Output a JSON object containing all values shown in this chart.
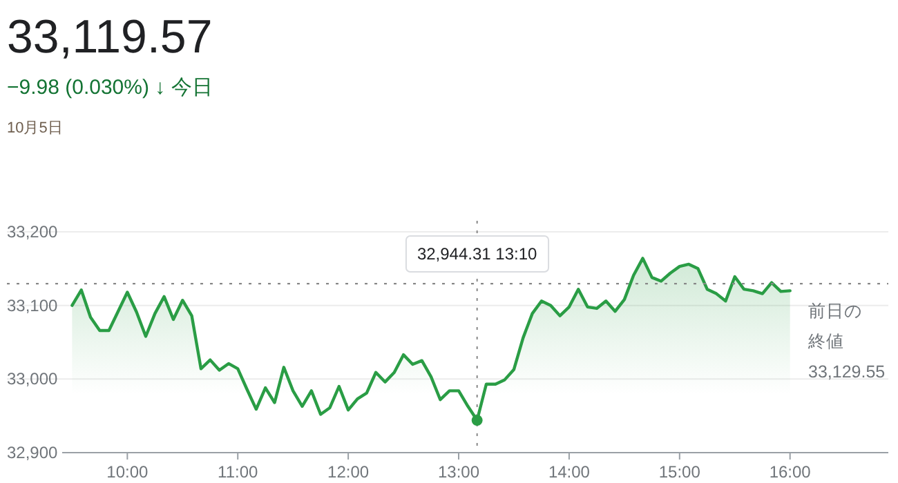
{
  "chart_data": {
    "type": "area",
    "title": "33,119.57",
    "subtitle": "−9.98 (0.030%) ↓ 今日",
    "annotations": [
      "10月5日"
    ],
    "x": [
      9.5,
      9.5833,
      9.6667,
      9.75,
      9.8333,
      9.9167,
      10,
      10.0833,
      10.1667,
      10.25,
      10.3333,
      10.4167,
      10.5,
      10.5833,
      10.6667,
      10.75,
      10.8333,
      10.9167,
      11,
      11.0833,
      11.1667,
      11.25,
      11.3333,
      11.4167,
      11.5,
      11.5833,
      11.6667,
      11.75,
      11.8333,
      11.9167,
      12,
      12.0833,
      12.1667,
      12.25,
      12.3333,
      12.4167,
      12.5,
      12.5833,
      12.6667,
      12.75,
      12.8333,
      12.9167,
      13,
      13.0833,
      13.1667,
      13.25,
      13.3333,
      13.4167,
      13.5,
      13.5833,
      13.6667,
      13.75,
      13.8333,
      13.9167,
      14,
      14.0833,
      14.1667,
      14.25,
      14.3333,
      14.4167,
      14.5,
      14.5833,
      14.6667,
      14.75,
      14.8333,
      14.9167,
      15,
      15.0833,
      15.1667,
      15.25,
      15.3333,
      15.4167,
      15.5,
      15.5833,
      15.6667,
      15.75,
      15.8333,
      15.9167,
      16
    ],
    "series": [
      {
        "color": "#2a9d45",
        "values": [
          33100,
          33121,
          33084,
          33066,
          33066,
          33092,
          33118,
          33091,
          33058,
          33089,
          33112,
          33081,
          33107,
          33086,
          33014,
          33026,
          33012,
          33021,
          33014,
          32986,
          32959,
          32988,
          32968,
          33016,
          32984,
          32963,
          32984,
          32952,
          32961,
          32990,
          32958,
          32973,
          32981,
          33009,
          32996,
          33009,
          33033,
          33020,
          33025,
          33003,
          32972,
          32984,
          32984,
          32963,
          32944,
          32993,
          32993,
          32999,
          33013,
          33056,
          33089,
          33106,
          33100,
          33086,
          33098,
          33122,
          33098,
          33096,
          33106,
          33092,
          33108,
          33141,
          33164,
          33138,
          33133,
          33144,
          33153,
          33156,
          33150,
          33122,
          33116,
          33106,
          33139,
          33122,
          33120,
          33116,
          33131,
          33119,
          33120
        ]
      }
    ],
    "xlim": [
      9.41,
      16.89
    ],
    "ylim": [
      32900,
      33200
    ],
    "xticks": [
      {
        "value": 10,
        "label": "10:00"
      },
      {
        "value": 11,
        "label": "11:00"
      },
      {
        "value": 12,
        "label": "12:00"
      },
      {
        "value": 13,
        "label": "13:00"
      },
      {
        "value": 14,
        "label": "14:00"
      },
      {
        "value": 15,
        "label": "15:00"
      },
      {
        "value": 16,
        "label": "16:00"
      }
    ],
    "yticks": [
      {
        "value": 32900,
        "label": "32,900"
      },
      {
        "value": 33000,
        "label": "33,000"
      },
      {
        "value": 33100,
        "label": "33,100"
      },
      {
        "value": 33200,
        "label": "33,200"
      }
    ],
    "grid": "y",
    "ref_lines": [
      {
        "axis": "y",
        "value": 33129.55,
        "label": "前日の終値\n33,129.55",
        "line_style": "dotted",
        "color": "#888888"
      },
      {
        "axis": "x",
        "value": 13.1667,
        "label": "32,944.31  13:10",
        "line_style": "dotted",
        "color": "#888888"
      }
    ]
  }
}
